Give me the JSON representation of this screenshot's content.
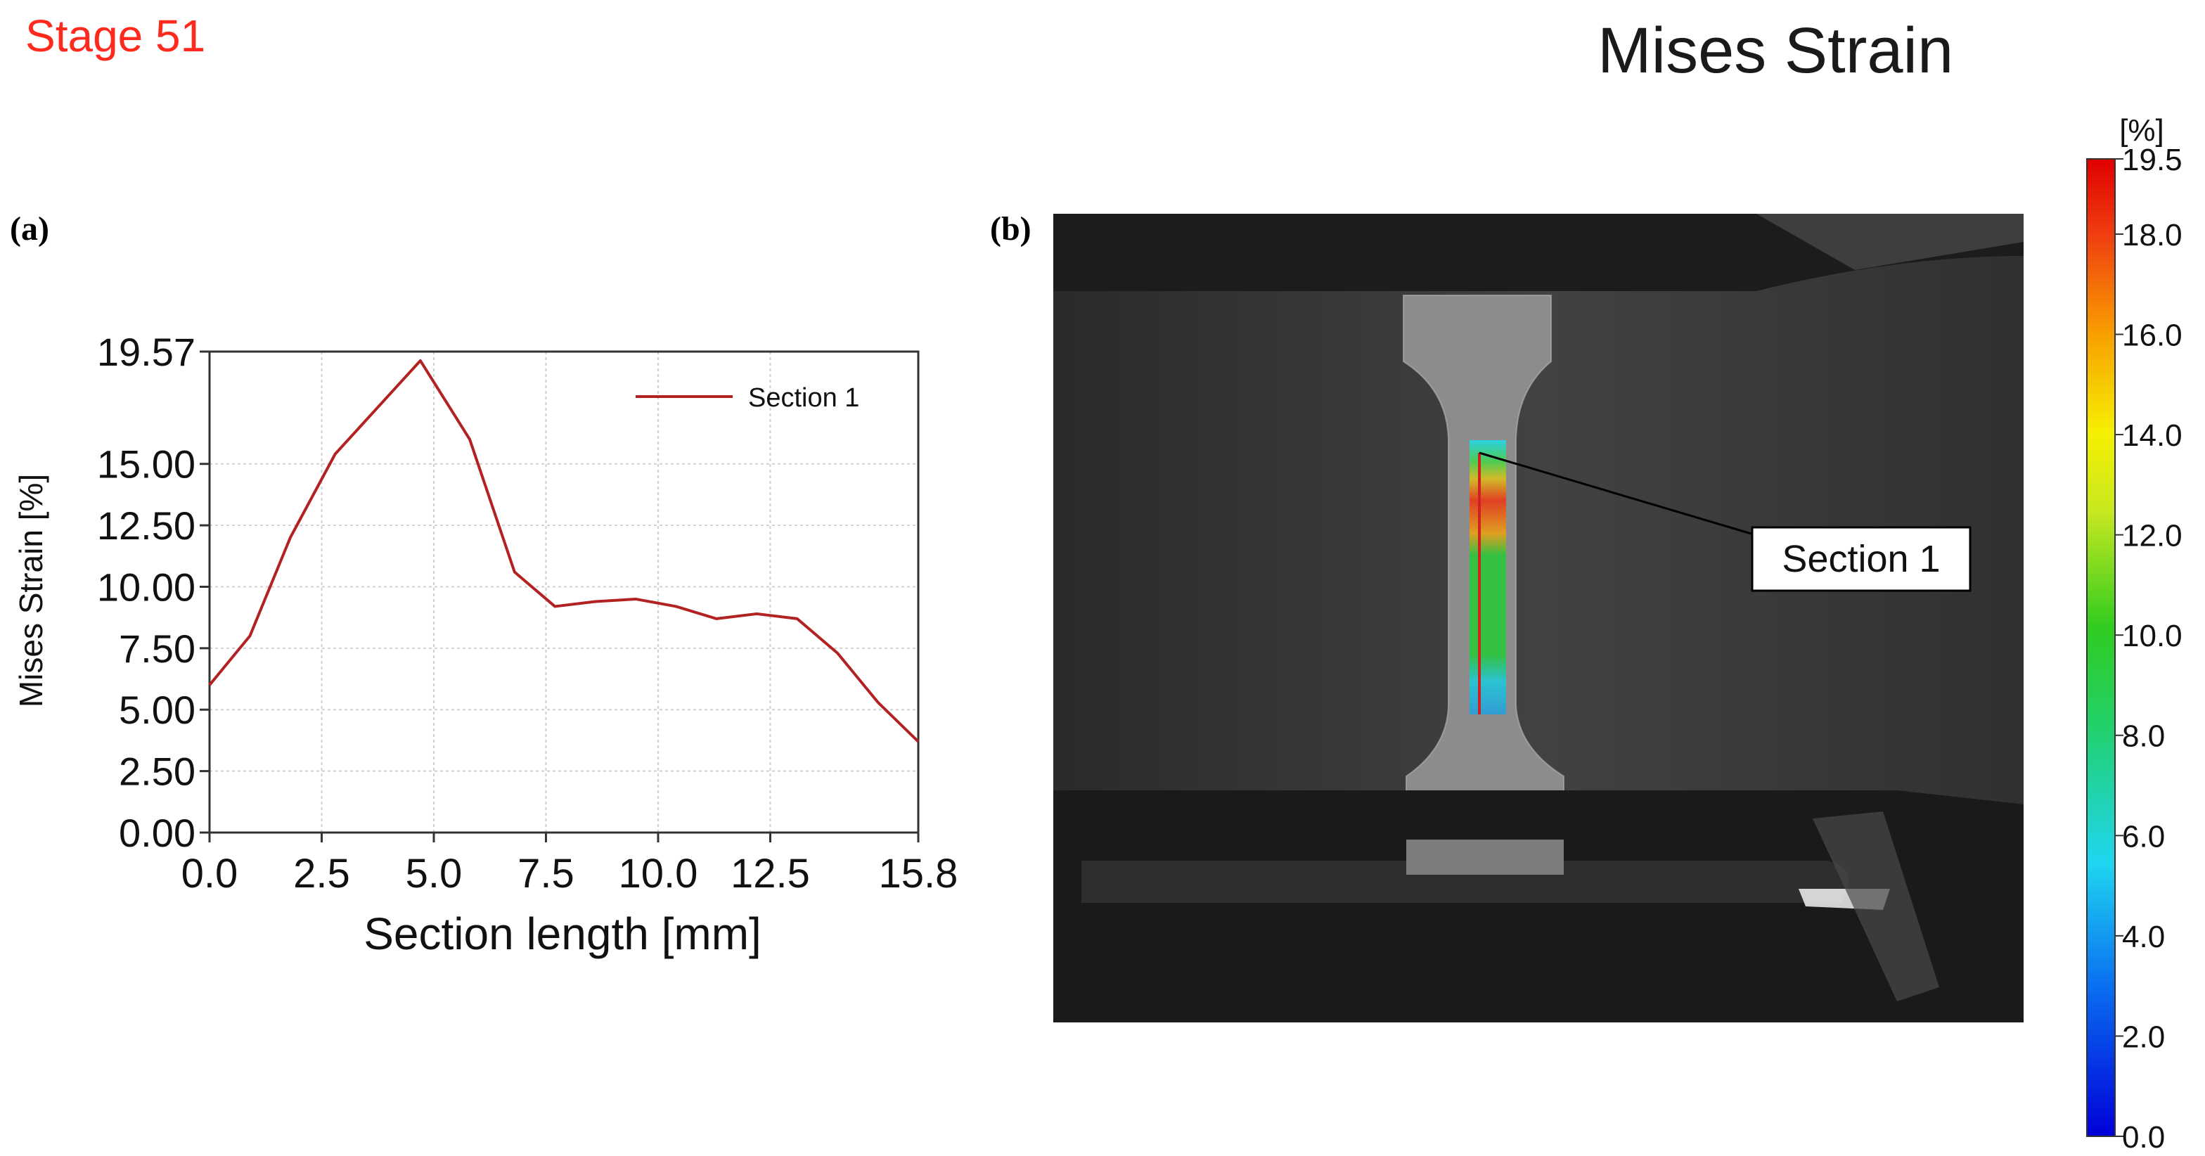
{
  "stage_label": "Stage 51",
  "main_title": "Mises Strain",
  "panel_a_label": "(a)",
  "panel_b_label": "(b)",
  "chart_data": {
    "type": "line",
    "xlabel": "Section length [mm]",
    "ylabel": "Mises Strain [%]",
    "xlim": [
      0.0,
      15.8
    ],
    "ylim": [
      0.0,
      19.57
    ],
    "x_ticks": [
      "0.0",
      "2.5",
      "5.0",
      "7.5",
      "10.0",
      "12.5",
      "15.8"
    ],
    "x_tick_values": [
      0.0,
      2.5,
      5.0,
      7.5,
      10.0,
      12.5,
      15.8
    ],
    "y_ticks": [
      "0.00",
      "2.50",
      "5.00",
      "7.50",
      "10.00",
      "12.50",
      "15.00",
      "19.57"
    ],
    "y_tick_values": [
      0.0,
      2.5,
      5.0,
      7.5,
      10.0,
      12.5,
      15.0,
      19.57
    ],
    "grid": true,
    "legend_position": "top-right",
    "series": [
      {
        "name": "Section 1",
        "color": "#b22222",
        "x": [
          0.0,
          0.9,
          1.8,
          2.8,
          3.7,
          4.7,
          5.8,
          6.8,
          7.7,
          8.6,
          9.5,
          10.4,
          11.3,
          12.2,
          13.1,
          14.0,
          14.9,
          15.8
        ],
        "y": [
          6.0,
          8.0,
          12.0,
          15.4,
          17.2,
          19.2,
          16.0,
          10.6,
          9.2,
          9.4,
          9.5,
          9.2,
          8.7,
          8.9,
          8.7,
          7.3,
          5.3,
          3.7
        ]
      }
    ]
  },
  "photo": {
    "section_label": "Section 1",
    "description_colors": {
      "background": "#3c3c3c",
      "specimen": "#8a8a8a",
      "fixture": "#1e1e1e"
    }
  },
  "colorbar": {
    "unit": "[%]",
    "ticks": [
      "19.5",
      "18.0",
      "16.0",
      "14.0",
      "12.0",
      "10.0",
      "8.0",
      "6.0",
      "4.0",
      "2.0",
      "0.0"
    ],
    "tick_values": [
      19.5,
      18.0,
      16.0,
      14.0,
      12.0,
      10.0,
      8.0,
      6.0,
      4.0,
      2.0,
      0.0
    ],
    "range": [
      0.0,
      19.5
    ]
  }
}
